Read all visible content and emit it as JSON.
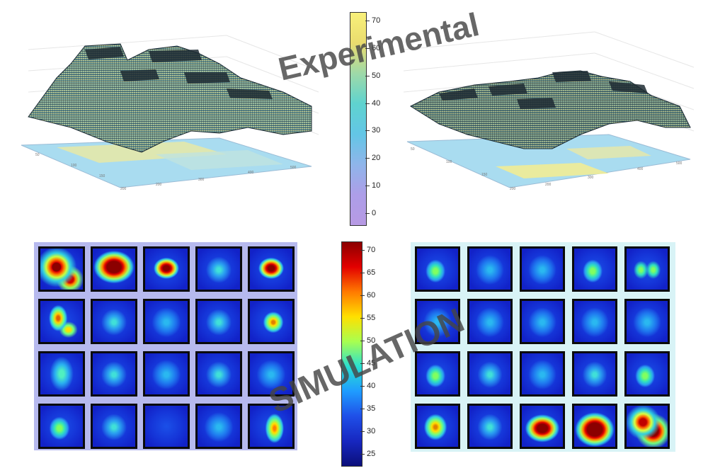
{
  "watermarks": {
    "experimental": "Experimental",
    "simulation": "SIMULATION"
  },
  "colorbar_top": {
    "ticks": [
      "70",
      "60",
      "50",
      "40",
      "30",
      "20",
      "10",
      "0"
    ],
    "colors": [
      "#f8f07a",
      "#eadc6e",
      "#9ed9a8",
      "#5fd3cf",
      "#63c6e6",
      "#8fb5ea",
      "#ad9ee8",
      "#b79ae4"
    ]
  },
  "colorbar_bottom": {
    "ticks": [
      "70",
      "65",
      "60",
      "55",
      "50",
      "45",
      "40",
      "35",
      "30",
      "25"
    ],
    "colors": [
      "#8b0000",
      "#e30000",
      "#ff7a00",
      "#ffe000",
      "#a8ff50",
      "#29e0d0",
      "#1f9cff",
      "#1f4fe8",
      "#1727c0",
      "#0b0f7a"
    ]
  },
  "heatmap_left": {
    "rows": 4,
    "cols": 5,
    "frame_color": "#b6b9ee",
    "hotspots": [
      [
        [
          "red2"
        ],
        [
          "red"
        ],
        [
          "redsmall"
        ],
        [
          "cyan"
        ],
        [
          "redsmall"
        ]
      ],
      [
        [
          "yellowdiag"
        ],
        [
          "cyan"
        ],
        [
          "cyanfaint"
        ],
        [
          "cyan"
        ],
        [
          "yellowsmall"
        ]
      ],
      [
        [
          "cyandiag"
        ],
        [
          "cyan"
        ],
        [
          "cyanfaint"
        ],
        [
          "cyan"
        ],
        [
          "cyanfaint"
        ]
      ],
      [
        [
          "green"
        ],
        [
          "cyan"
        ],
        [
          "none"
        ],
        [
          "cyanfaint"
        ],
        [
          "yellowcurve"
        ]
      ]
    ]
  },
  "heatmap_right": {
    "rows": 4,
    "cols": 5,
    "frame_color": "#d8f3f6",
    "hotspots": [
      [
        [
          "green"
        ],
        [
          "cyanfaint"
        ],
        [
          "cyanfaint"
        ],
        [
          "green"
        ],
        [
          "green2"
        ]
      ],
      [
        [
          "cyanfaint"
        ],
        [
          "cyanfaint"
        ],
        [
          "cyanfaint"
        ],
        [
          "cyanfaint"
        ],
        [
          "cyanfaint"
        ]
      ],
      [
        [
          "green"
        ],
        [
          "cyan"
        ],
        [
          "cyanfaint"
        ],
        [
          "cyan"
        ],
        [
          "green"
        ]
      ],
      [
        [
          "yellow"
        ],
        [
          "cyan"
        ],
        [
          "redwide"
        ],
        [
          "redbig"
        ],
        [
          "red2b"
        ]
      ]
    ]
  }
}
